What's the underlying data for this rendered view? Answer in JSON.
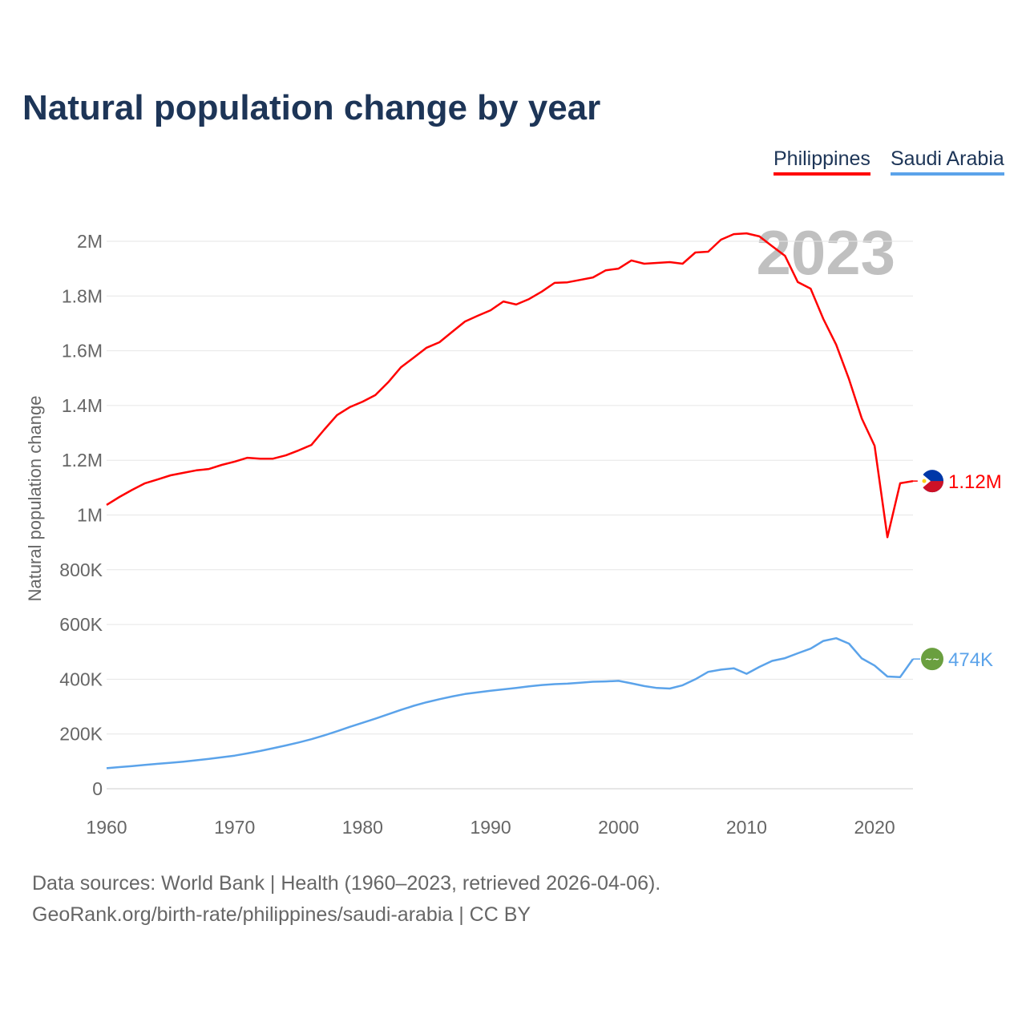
{
  "chart_data": {
    "type": "line",
    "title": "Natural population change by year",
    "xlabel": "",
    "ylabel": "Natural population change",
    "xlim": [
      1960,
      2023
    ],
    "ylim": [
      0,
      2000000
    ],
    "year_watermark": "2023",
    "grid": true,
    "legend_placement": "top-right",
    "x_ticks": [
      1960,
      1970,
      1980,
      1990,
      2000,
      2010,
      2020
    ],
    "y_ticks": [
      {
        "value": 0,
        "label": "0"
      },
      {
        "value": 200000,
        "label": "200K"
      },
      {
        "value": 400000,
        "label": "400K"
      },
      {
        "value": 600000,
        "label": "600K"
      },
      {
        "value": 800000,
        "label": "800K"
      },
      {
        "value": 1000000,
        "label": "1M"
      },
      {
        "value": 1200000,
        "label": "1.2M"
      },
      {
        "value": 1400000,
        "label": "1.4M"
      },
      {
        "value": 1600000,
        "label": "1.6M"
      },
      {
        "value": 1800000,
        "label": "1.8M"
      },
      {
        "value": 2000000,
        "label": "2M"
      }
    ],
    "x": [
      1960,
      1961,
      1962,
      1963,
      1964,
      1965,
      1966,
      1967,
      1968,
      1969,
      1970,
      1971,
      1972,
      1973,
      1974,
      1975,
      1976,
      1977,
      1978,
      1979,
      1980,
      1981,
      1982,
      1983,
      1984,
      1985,
      1986,
      1987,
      1988,
      1989,
      1990,
      1991,
      1992,
      1993,
      1994,
      1995,
      1996,
      1997,
      1998,
      1999,
      2000,
      2001,
      2002,
      2003,
      2004,
      2005,
      2006,
      2007,
      2008,
      2009,
      2010,
      2011,
      2012,
      2013,
      2014,
      2015,
      2016,
      2017,
      2018,
      2019,
      2020,
      2021,
      2022,
      2023
    ],
    "series": [
      {
        "name": "Philippines",
        "color": "#ff0000",
        "end_label": "1.12M",
        "flag": "philippines-flag",
        "values": [
          1037000,
          1066000,
          1092000,
          1116000,
          1130000,
          1145000,
          1154000,
          1163000,
          1168000,
          1183000,
          1195000,
          1209000,
          1206000,
          1206000,
          1218000,
          1236000,
          1256000,
          1312000,
          1365000,
          1394000,
          1414000,
          1438000,
          1485000,
          1540000,
          1575000,
          1611000,
          1631000,
          1669000,
          1707000,
          1728000,
          1748000,
          1780000,
          1769000,
          1789000,
          1816000,
          1848000,
          1850000,
          1859000,
          1868000,
          1894000,
          1900000,
          1930000,
          1918000,
          1921000,
          1924000,
          1918000,
          1959000,
          1962000,
          2006000,
          2026000,
          2029000,
          2018000,
          1982000,
          1947000,
          1851000,
          1827000,
          1716000,
          1622000,
          1496000,
          1353000,
          1253000,
          919000,
          1116000,
          1124000
        ]
      },
      {
        "name": "Saudi Arabia",
        "color": "#5ba3ea",
        "end_label": "474K",
        "flag": "saudi-arabia-flag",
        "values": [
          75000,
          79000,
          83000,
          87000,
          91000,
          95000,
          99000,
          104000,
          109000,
          115000,
          121000,
          129000,
          138000,
          148000,
          158000,
          169000,
          181000,
          195000,
          210000,
          226000,
          241000,
          256000,
          272000,
          288000,
          303000,
          316000,
          327000,
          337000,
          346000,
          352000,
          358000,
          363000,
          368000,
          374000,
          379000,
          382000,
          384000,
          387000,
          391000,
          392000,
          394000,
          385000,
          375000,
          368000,
          366000,
          378000,
          400000,
          427000,
          435000,
          440000,
          420000,
          445000,
          467000,
          477000,
          495000,
          512000,
          540000,
          550000,
          530000,
          476000,
          450000,
          410000,
          408000,
          474000
        ]
      }
    ]
  },
  "footer": {
    "line1": "Data sources: World Bank | Health (1960–2023, retrieved 2026-04-06).",
    "line2": "GeoRank.org/birth-rate/philippines/saudi-arabia | CC BY"
  }
}
